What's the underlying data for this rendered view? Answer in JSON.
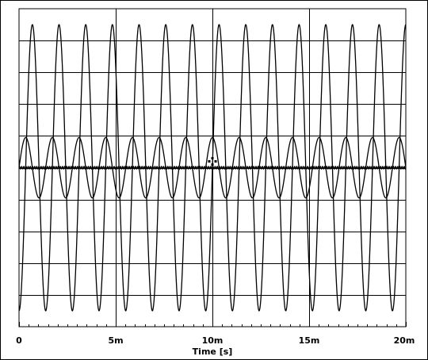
{
  "chart_data": {
    "type": "line",
    "title": "",
    "xlabel": "Time [s]",
    "ylabel": "",
    "xlim": [
      0,
      0.02
    ],
    "ylim": [
      -1,
      1
    ],
    "x_tick_values": [
      0,
      0.005,
      0.01,
      0.015,
      0.02
    ],
    "x_tick_labels": [
      "0",
      "5m",
      "10m",
      "15m",
      "20m"
    ],
    "grid": true,
    "legend": "none",
    "series": [
      {
        "amplitude": 0.9,
        "offset": 0,
        "frequency_hz": 725,
        "phase_deg": -90,
        "color": "#000000"
      },
      {
        "amplitude": 0.19,
        "offset": 0,
        "frequency_hz": 725,
        "phase_deg": 0,
        "color": "#000000"
      },
      {
        "amplitude": 0.0,
        "offset": 0,
        "frequency_hz": 0,
        "phase_deg": 0,
        "color": "#000000"
      }
    ],
    "cursor_marker": {
      "x": 0.01,
      "y": 0.02
    }
  },
  "colors": {
    "background": "#ffffff",
    "grid": "#000000",
    "trace": "#000000"
  }
}
